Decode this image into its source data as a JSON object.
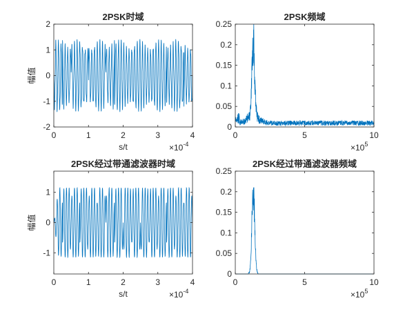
{
  "figure": {
    "background": "#ffffff",
    "line_color": "#0072BD",
    "axis_color": "#262626"
  },
  "chart_data": [
    {
      "type": "line",
      "title": "2PSK时域",
      "xlabel": "s/t",
      "ylabel": "幅值",
      "xlim": [
        0,
        0.0004
      ],
      "ylim": [
        -2,
        2
      ],
      "xticks": [
        "0",
        "1",
        "2",
        "3",
        "4"
      ],
      "yticks": [
        "-2",
        "-1",
        "0",
        "1",
        "2"
      ],
      "x_multiplier": "×10",
      "x_exponent": "-4",
      "signal": {
        "kind": "time",
        "amplitude": 1.3,
        "carrier_periods": 52,
        "symbols": 16,
        "samples": 1400
      }
    },
    {
      "type": "line",
      "title": "2PSK频域",
      "xlabel": "",
      "ylabel": "",
      "xlim": [
        0,
        1000000
      ],
      "ylim": [
        0,
        0.25
      ],
      "xticks": [
        "0",
        "5",
        "10"
      ],
      "yticks": [
        "0",
        "0.05",
        "0.1",
        "0.15",
        "0.2",
        "0.25"
      ],
      "x_multiplier": "×10",
      "x_exponent": "5",
      "signal": {
        "kind": "spectrum",
        "peak": 0.23,
        "peak_freq": 130000,
        "floor": 0.012,
        "samples": 900
      }
    },
    {
      "type": "line",
      "title": "2PSK经过带通滤波器时域",
      "xlabel": "s/t",
      "ylabel": "幅值",
      "xlim": [
        0,
        0.0004
      ],
      "ylim": [
        -1.7,
        1.7
      ],
      "xticks": [
        "0",
        "1",
        "2",
        "3",
        "4"
      ],
      "yticks": [
        "-1",
        "0",
        "1"
      ],
      "x_multiplier": "×10",
      "x_exponent": "-4",
      "signal": {
        "kind": "filtered",
        "amplitude": 1.15,
        "carrier_periods": 52,
        "symbols": 16,
        "samples": 1400
      }
    },
    {
      "type": "line",
      "title": "2PSK经过带通滤波器频域",
      "xlabel": "",
      "ylabel": "",
      "xlim": [
        0,
        1000000
      ],
      "ylim": [
        0,
        0.25
      ],
      "xticks": [
        "0",
        "5",
        "10"
      ],
      "yticks": [
        "0",
        "0.05",
        "0.1",
        "0.15",
        "0.2",
        "0.25"
      ],
      "x_multiplier": "×10",
      "x_exponent": "5",
      "signal": {
        "kind": "bandspectrum",
        "peak": 0.23,
        "peak_freq": 130000,
        "floor": 0.0,
        "samples": 900
      }
    }
  ]
}
